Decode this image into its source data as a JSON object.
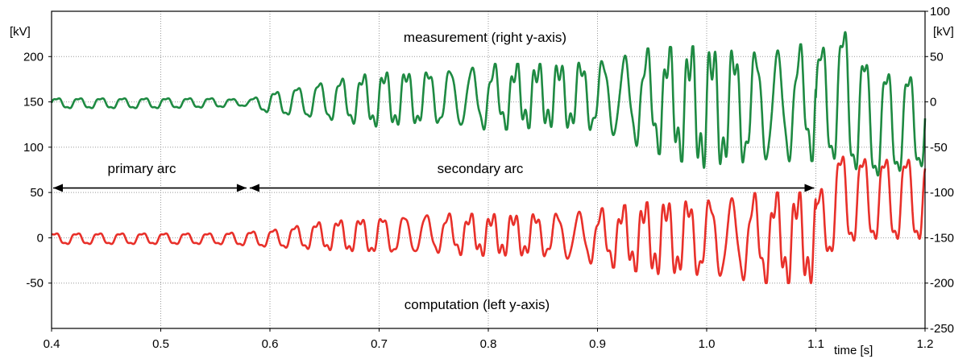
{
  "chart_data": {
    "type": "line",
    "x_axis": {
      "range": [
        0.4,
        1.2
      ],
      "ticks": [
        "0.4",
        "0.5",
        "0.6",
        "0.7",
        "0.8",
        "0.9",
        "1.0",
        "1.1",
        "1.2"
      ],
      "label": "time [s]"
    },
    "y_left": {
      "range": [
        -100,
        250
      ],
      "ticks": [
        "-50",
        "0",
        "50",
        "100",
        "150",
        "200"
      ],
      "unit": "[kV]"
    },
    "y_right": {
      "range": [
        -250,
        100
      ],
      "ticks": [
        "-250",
        "-200",
        "-150",
        "-100",
        "-50",
        "0",
        "50",
        "100"
      ],
      "unit": "[kV]"
    },
    "grid": true,
    "annotations": {
      "measurement": "measurement (right y-axis)",
      "computation": "computation (left y-axis)",
      "primary_arc": "primary arc",
      "secondary_arc": "secondary arc"
    },
    "arc_intervals": {
      "primary": [
        0.4,
        0.58
      ],
      "secondary": [
        0.58,
        1.1
      ]
    },
    "series": [
      {
        "axis": "right",
        "color": "#1e8a42",
        "x": [
          0.4,
          0.45,
          0.5,
          0.55,
          0.58,
          0.6,
          0.65,
          0.7,
          0.75,
          0.8,
          0.85,
          0.9,
          0.95,
          1.0,
          1.05,
          1.1,
          1.13,
          1.15,
          1.2
        ],
        "max": [
          5,
          5,
          5,
          5,
          3,
          12,
          25,
          35,
          38,
          42,
          42,
          48,
          60,
          62,
          60,
          65,
          95,
          45,
          35
        ],
        "min": [
          -8,
          -8,
          -8,
          -7,
          -5,
          -15,
          -22,
          -30,
          -28,
          -32,
          -28,
          -35,
          -55,
          -75,
          -70,
          -65,
          -85,
          -95,
          -80
        ]
      },
      {
        "axis": "left",
        "color": "#e8302a",
        "x": [
          0.4,
          0.45,
          0.5,
          0.55,
          0.58,
          0.6,
          0.65,
          0.7,
          0.75,
          0.8,
          0.85,
          0.9,
          0.95,
          1.0,
          1.05,
          1.1,
          1.12,
          1.15,
          1.2
        ],
        "max": [
          6,
          6,
          6,
          6,
          8,
          10,
          20,
          25,
          28,
          26,
          28,
          32,
          40,
          45,
          50,
          50,
          100,
          95,
          95
        ],
        "min": [
          -8,
          -8,
          -8,
          -8,
          -10,
          -12,
          -15,
          -20,
          -18,
          -20,
          -22,
          -30,
          -40,
          -45,
          -50,
          -50,
          -15,
          -10,
          -10
        ]
      }
    ]
  }
}
